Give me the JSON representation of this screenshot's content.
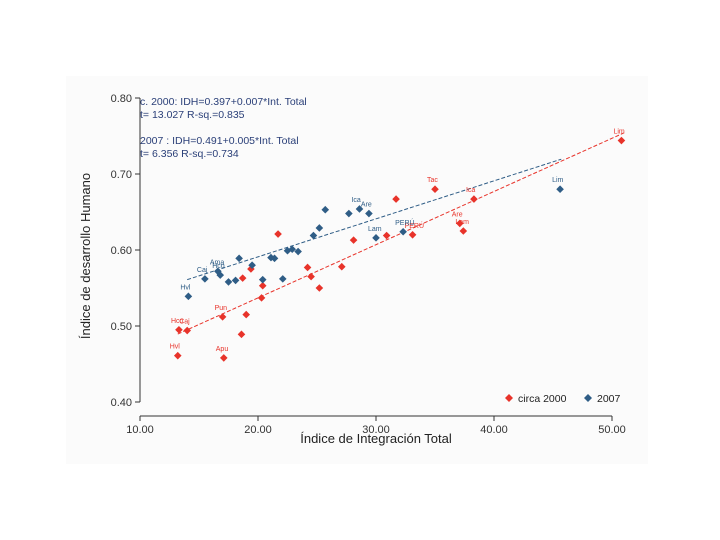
{
  "chart_data": {
    "type": "scatter",
    "xlabel": "Índice de Integración Total",
    "ylabel": "Índice de desarrollo Humano",
    "xlim": [
      10,
      50
    ],
    "ylim": [
      0.4,
      0.8
    ],
    "x_ticks": [
      "10.00",
      "20.00",
      "30.00",
      "40.00",
      "50.00"
    ],
    "y_ticks": [
      "0.40",
      "0.50",
      "0.60",
      "0.70",
      "0.80"
    ],
    "grid": false,
    "legend_position": "bottom-right",
    "annotations": [
      "c. 2000: IDH=0.397+0.007*Int. Total",
      "t= 13.027   R-sq.=0.835",
      "2007   : IDH=0.491+0.005*Int. Total",
      "t= 6.356   R-sq.=0.734"
    ],
    "series": [
      {
        "name": "circa 2000",
        "color": "#e8332a",
        "marker": "diamond",
        "fit": {
          "intercept": 0.397,
          "slope": 0.007,
          "x_range": [
            13.2,
            51
          ]
        },
        "points": [
          {
            "x": 13.2,
            "y": 0.461,
            "label": "Hvl"
          },
          {
            "x": 13.3,
            "y": 0.495,
            "label": "Hco"
          },
          {
            "x": 14.0,
            "y": 0.494,
            "label": "Caj"
          },
          {
            "x": 17.1,
            "y": 0.458,
            "label": "Apu"
          },
          {
            "x": 17.0,
            "y": 0.512,
            "label": "Pun"
          },
          {
            "x": 18.6,
            "y": 0.489,
            "label": ""
          },
          {
            "x": 18.7,
            "y": 0.563,
            "label": ""
          },
          {
            "x": 19.0,
            "y": 0.515,
            "label": ""
          },
          {
            "x": 19.4,
            "y": 0.575,
            "label": ""
          },
          {
            "x": 20.4,
            "y": 0.553,
            "label": ""
          },
          {
            "x": 20.3,
            "y": 0.537,
            "label": ""
          },
          {
            "x": 21.7,
            "y": 0.621,
            "label": ""
          },
          {
            "x": 24.2,
            "y": 0.577,
            "label": ""
          },
          {
            "x": 24.5,
            "y": 0.565,
            "label": ""
          },
          {
            "x": 25.2,
            "y": 0.55,
            "label": ""
          },
          {
            "x": 27.1,
            "y": 0.578,
            "label": ""
          },
          {
            "x": 28.1,
            "y": 0.613,
            "label": ""
          },
          {
            "x": 30.9,
            "y": 0.619,
            "label": ""
          },
          {
            "x": 31.7,
            "y": 0.667,
            "label": ""
          },
          {
            "x": 33.1,
            "y": 0.62,
            "label": "PERÚ"
          },
          {
            "x": 35.0,
            "y": 0.68,
            "label": "Tac"
          },
          {
            "x": 37.1,
            "y": 0.635,
            "label": "Are"
          },
          {
            "x": 37.4,
            "y": 0.625,
            "label": "Lam"
          },
          {
            "x": 38.3,
            "y": 0.667,
            "label": "Ica"
          },
          {
            "x": 50.8,
            "y": 0.744,
            "label": "Lim"
          }
        ]
      },
      {
        "name": "2007",
        "color": "#2f5d86",
        "marker": "diamond",
        "fit": {
          "intercept": 0.491,
          "slope": 0.005,
          "x_range": [
            14,
            45.7
          ]
        },
        "points": [
          {
            "x": 14.1,
            "y": 0.539,
            "label": "Hvl"
          },
          {
            "x": 15.5,
            "y": 0.562,
            "label": "Caj"
          },
          {
            "x": 16.6,
            "y": 0.572,
            "label": "Ama"
          },
          {
            "x": 16.8,
            "y": 0.567,
            "label": "Hco"
          },
          {
            "x": 17.5,
            "y": 0.558,
            "label": ""
          },
          {
            "x": 18.1,
            "y": 0.56,
            "label": ""
          },
          {
            "x": 18.4,
            "y": 0.589,
            "label": ""
          },
          {
            "x": 19.5,
            "y": 0.58,
            "label": ""
          },
          {
            "x": 20.4,
            "y": 0.561,
            "label": ""
          },
          {
            "x": 21.1,
            "y": 0.59,
            "label": ""
          },
          {
            "x": 21.4,
            "y": 0.589,
            "label": ""
          },
          {
            "x": 22.1,
            "y": 0.562,
            "label": ""
          },
          {
            "x": 22.5,
            "y": 0.599,
            "label": ""
          },
          {
            "x": 22.9,
            "y": 0.601,
            "label": ""
          },
          {
            "x": 23.4,
            "y": 0.598,
            "label": ""
          },
          {
            "x": 24.7,
            "y": 0.619,
            "label": ""
          },
          {
            "x": 25.2,
            "y": 0.629,
            "label": ""
          },
          {
            "x": 25.7,
            "y": 0.653,
            "label": ""
          },
          {
            "x": 27.7,
            "y": 0.648,
            "label": ""
          },
          {
            "x": 28.6,
            "y": 0.654,
            "label": "Ica"
          },
          {
            "x": 29.4,
            "y": 0.648,
            "label": "Are"
          },
          {
            "x": 30.0,
            "y": 0.616,
            "label": "Lam"
          },
          {
            "x": 32.3,
            "y": 0.624,
            "label": "PERÚ"
          },
          {
            "x": 45.6,
            "y": 0.68,
            "label": "Lim"
          }
        ]
      }
    ]
  }
}
